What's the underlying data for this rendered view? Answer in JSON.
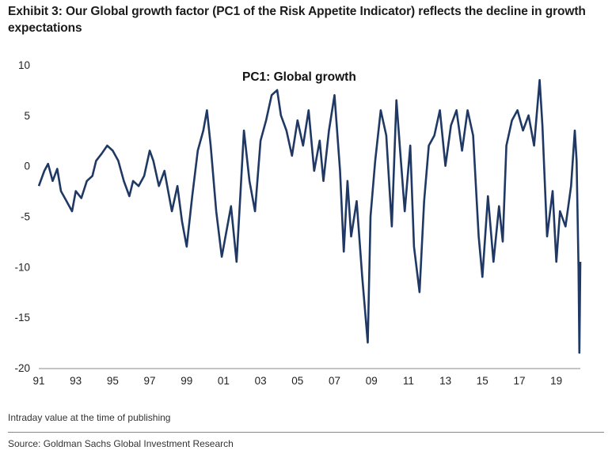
{
  "title": "Exhibit 3: Our Global growth factor (PC1 of the Risk Appetite Indicator) reflects the decline in growth expectations",
  "note": "Intraday value at the time of publishing",
  "source": "Source: Goldman Sachs Global Investment Research",
  "line_color": "#1f3864",
  "chart_data": {
    "type": "line",
    "title": "",
    "xlabel": "",
    "ylabel": "",
    "ylim": [
      -20,
      10
    ],
    "xlim": [
      1991,
      2020.3
    ],
    "grid": false,
    "legend": "none",
    "y_ticks": [
      {
        "value": 10,
        "label": "10"
      },
      {
        "value": 5,
        "label": "5"
      },
      {
        "value": 0,
        "label": "0"
      },
      {
        "value": -5,
        "label": "-5"
      },
      {
        "value": -10,
        "label": "-10"
      },
      {
        "value": -15,
        "label": "-15"
      },
      {
        "value": -20,
        "label": "-20"
      }
    ],
    "x_ticks": [
      {
        "value": 1991,
        "label": "91"
      },
      {
        "value": 1993,
        "label": "93"
      },
      {
        "value": 1995,
        "label": "95"
      },
      {
        "value": 1997,
        "label": "97"
      },
      {
        "value": 1999,
        "label": "99"
      },
      {
        "value": 2001,
        "label": "01"
      },
      {
        "value": 2003,
        "label": "03"
      },
      {
        "value": 2005,
        "label": "05"
      },
      {
        "value": 2007,
        "label": "07"
      },
      {
        "value": 2009,
        "label": "09"
      },
      {
        "value": 2011,
        "label": "11"
      },
      {
        "value": 2013,
        "label": "13"
      },
      {
        "value": 2015,
        "label": "15"
      },
      {
        "value": 2017,
        "label": "17"
      },
      {
        "value": 2019,
        "label": "19"
      }
    ],
    "series": [
      {
        "name": "PC1: Global growth",
        "x": [
          1991.0,
          1991.3,
          1991.5,
          1991.75,
          1992.0,
          1992.2,
          1992.5,
          1992.8,
          1993.0,
          1993.3,
          1993.6,
          1993.9,
          1994.1,
          1994.4,
          1994.7,
          1995.0,
          1995.3,
          1995.6,
          1995.9,
          1996.1,
          1996.4,
          1996.7,
          1997.0,
          1997.2,
          1997.5,
          1997.8,
          1998.0,
          1998.2,
          1998.5,
          1998.75,
          1999.0,
          1999.3,
          1999.6,
          1999.9,
          2000.1,
          2000.3,
          2000.6,
          2000.9,
          2001.1,
          2001.4,
          2001.7,
          2001.9,
          2002.1,
          2002.4,
          2002.7,
          2003.0,
          2003.3,
          2003.6,
          2003.9,
          2004.1,
          2004.4,
          2004.7,
          2005.0,
          2005.3,
          2005.6,
          2005.9,
          2006.2,
          2006.4,
          2006.7,
          2007.0,
          2007.3,
          2007.5,
          2007.7,
          2007.9,
          2008.2,
          2008.5,
          2008.8,
          2008.95,
          2009.2,
          2009.5,
          2009.8,
          2010.1,
          2010.35,
          2010.55,
          2010.8,
          2011.1,
          2011.3,
          2011.6,
          2011.85,
          2012.1,
          2012.4,
          2012.7,
          2013.0,
          2013.3,
          2013.6,
          2013.9,
          2014.2,
          2014.5,
          2014.8,
          2015.0,
          2015.3,
          2015.6,
          2015.9,
          2016.1,
          2016.3,
          2016.6,
          2016.9,
          2017.2,
          2017.5,
          2017.8,
          2018.1,
          2018.25,
          2018.5,
          2018.8,
          2019.0,
          2019.2,
          2019.5,
          2019.8,
          2020.0,
          2020.1,
          2020.2,
          2020.25,
          2020.3
        ],
        "y": [
          -2,
          -0.5,
          0.2,
          -1.5,
          -0.3,
          -2.5,
          -3.5,
          -4.5,
          -2.5,
          -3.2,
          -1.5,
          -1,
          0.5,
          1.2,
          2,
          1.5,
          0.5,
          -1.5,
          -3,
          -1.5,
          -2,
          -1,
          1.5,
          0.5,
          -2,
          -0.5,
          -2.5,
          -4.5,
          -2,
          -5.5,
          -8,
          -3,
          1.5,
          3.5,
          5.5,
          2,
          -4.5,
          -9,
          -7,
          -4,
          -9.5,
          -3,
          3.5,
          -1.5,
          -4.5,
          2.5,
          4.5,
          7,
          7.5,
          5,
          3.5,
          1,
          4.5,
          2,
          5.5,
          -0.5,
          2.5,
          -1.5,
          3.5,
          7,
          -0.5,
          -8.5,
          -1.5,
          -7,
          -3.5,
          -11,
          -17.5,
          -5,
          0.5,
          5.5,
          3,
          -6,
          6.5,
          1.5,
          -4.5,
          2,
          -8,
          -12.5,
          -3.5,
          2,
          3,
          5.5,
          0,
          4,
          5.5,
          1.5,
          5.5,
          3,
          -7,
          -11,
          -3,
          -9.5,
          -4,
          -7.5,
          2,
          4.5,
          5.5,
          3.5,
          5,
          2,
          8.5,
          4,
          -7,
          -2.5,
          -9.5,
          -4.5,
          -6,
          -2,
          3.5,
          0.5,
          -10,
          -18.5,
          -9.5
        ]
      }
    ]
  }
}
